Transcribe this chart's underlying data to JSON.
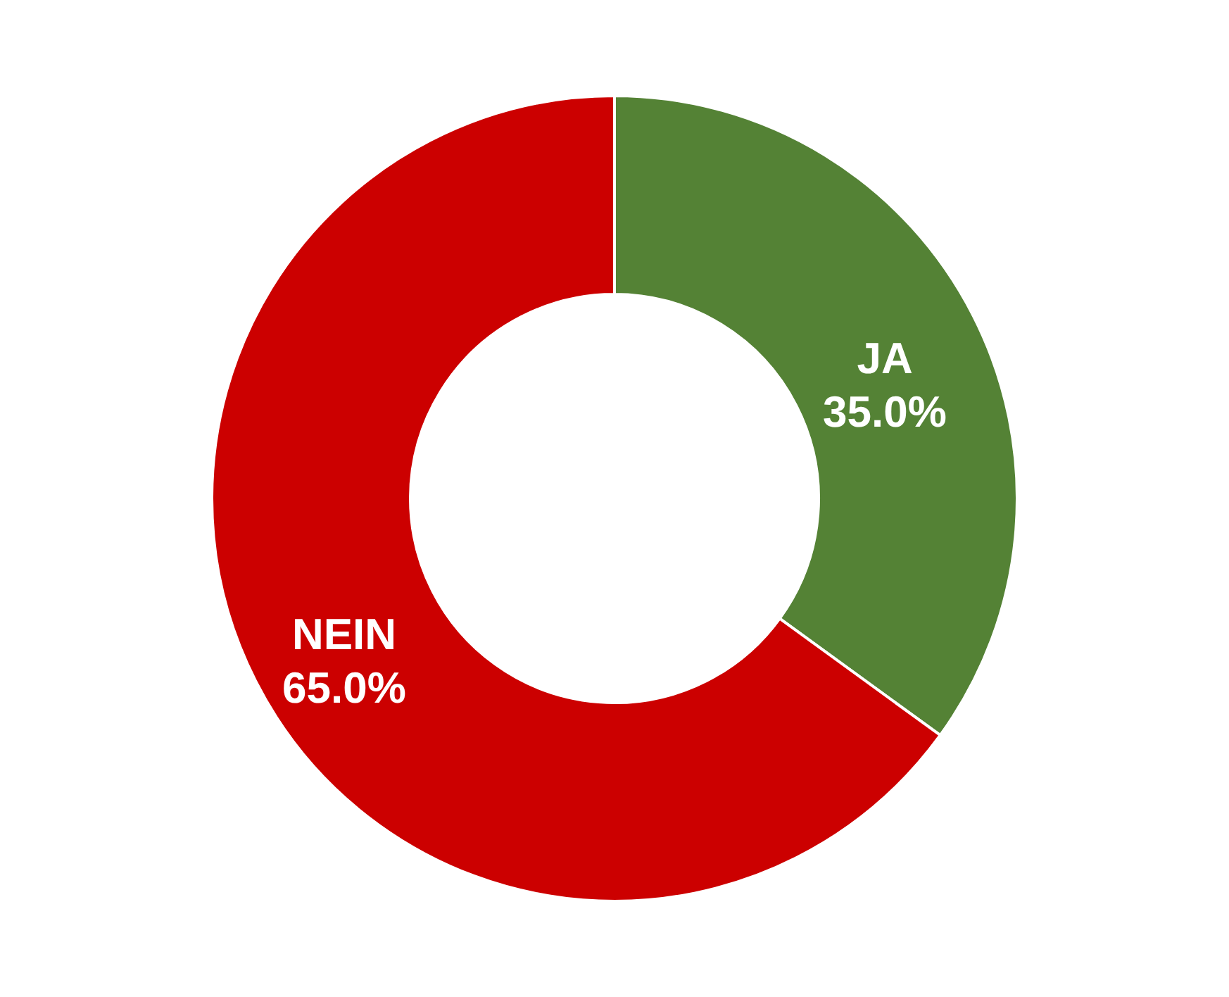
{
  "chart_data": {
    "type": "donut",
    "categories": [
      "JA",
      "NEIN"
    ],
    "values": [
      35.0,
      65.0
    ],
    "colors": [
      "#548235",
      "#cc0000"
    ],
    "value_labels": [
      "35.0%",
      "65.0%"
    ]
  }
}
